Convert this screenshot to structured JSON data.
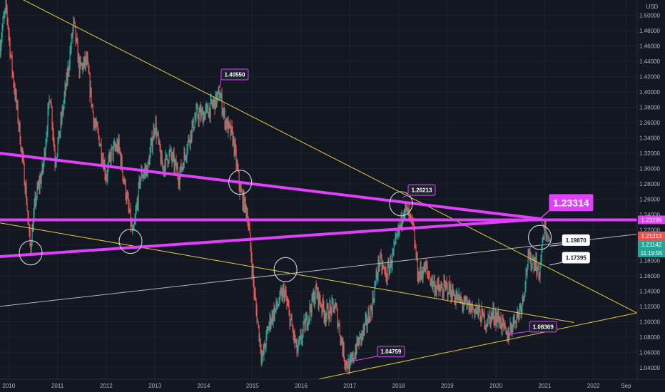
{
  "chart_data": {
    "type": "line",
    "currency_label": "USD",
    "x_axis": {
      "range_years": [
        2009.82,
        2023.0
      ],
      "ticks": [
        {
          "label": "2010",
          "x": 2010
        },
        {
          "label": "2011",
          "x": 2011
        },
        {
          "label": "2012",
          "x": 2012
        },
        {
          "label": "2013",
          "x": 2013
        },
        {
          "label": "2014",
          "x": 2014
        },
        {
          "label": "2015",
          "x": 2015
        },
        {
          "label": "2016",
          "x": 2016
        },
        {
          "label": "2017",
          "x": 2017
        },
        {
          "label": "2018",
          "x": 2018
        },
        {
          "label": "2019",
          "x": 2019
        },
        {
          "label": "2020",
          "x": 2020
        },
        {
          "label": "2021",
          "x": 2021
        },
        {
          "label": "2022",
          "x": 2022
        },
        {
          "label": "Sep",
          "x": 2022.67
        }
      ]
    },
    "y_axis": {
      "range": [
        1.025,
        1.52
      ],
      "ticks": [
        "1.04000",
        "1.06000",
        "1.08000",
        "1.10000",
        "1.12000",
        "1.14000",
        "1.16000",
        "1.18000",
        "1.20000",
        "1.22000",
        "1.24000",
        "1.26000",
        "1.28000",
        "1.30000",
        "1.32000",
        "1.34000",
        "1.36000",
        "1.38000",
        "1.40000",
        "1.42000",
        "1.44000",
        "1.46000",
        "1.48000",
        "1.50000"
      ]
    },
    "price_series": {
      "name": "",
      "anchors": [
        [
          2009.82,
          1.46
        ],
        [
          2009.88,
          1.49
        ],
        [
          2009.95,
          1.51
        ],
        [
          2010.05,
          1.44
        ],
        [
          2010.2,
          1.36
        ],
        [
          2010.35,
          1.27
        ],
        [
          2010.44,
          1.195
        ],
        [
          2010.55,
          1.26
        ],
        [
          2010.7,
          1.3
        ],
        [
          2010.85,
          1.4
        ],
        [
          2010.95,
          1.31
        ],
        [
          2011.05,
          1.35
        ],
        [
          2011.2,
          1.42
        ],
        [
          2011.33,
          1.49
        ],
        [
          2011.45,
          1.43
        ],
        [
          2011.6,
          1.44
        ],
        [
          2011.75,
          1.36
        ],
        [
          2011.85,
          1.34
        ],
        [
          2012.0,
          1.29
        ],
        [
          2012.1,
          1.32
        ],
        [
          2012.25,
          1.33
        ],
        [
          2012.4,
          1.27
        ],
        [
          2012.55,
          1.21
        ],
        [
          2012.7,
          1.29
        ],
        [
          2012.85,
          1.3
        ],
        [
          2013.0,
          1.36
        ],
        [
          2013.15,
          1.3
        ],
        [
          2013.3,
          1.32
        ],
        [
          2013.5,
          1.29
        ],
        [
          2013.7,
          1.34
        ],
        [
          2013.85,
          1.37
        ],
        [
          2014.0,
          1.37
        ],
        [
          2014.15,
          1.38
        ],
        [
          2014.33,
          1.397
        ],
        [
          2014.45,
          1.36
        ],
        [
          2014.6,
          1.34
        ],
        [
          2014.75,
          1.27
        ],
        [
          2014.9,
          1.24
        ],
        [
          2015.05,
          1.13
        ],
        [
          2015.2,
          1.05
        ],
        [
          2015.35,
          1.1
        ],
        [
          2015.5,
          1.12
        ],
        [
          2015.65,
          1.14
        ],
        [
          2015.75,
          1.11
        ],
        [
          2015.92,
          1.06
        ],
        [
          2016.05,
          1.09
        ],
        [
          2016.3,
          1.14
        ],
        [
          2016.5,
          1.11
        ],
        [
          2016.7,
          1.12
        ],
        [
          2016.9,
          1.05
        ],
        [
          2017.0,
          1.04
        ],
        [
          2017.15,
          1.07
        ],
        [
          2017.3,
          1.09
        ],
        [
          2017.45,
          1.12
        ],
        [
          2017.6,
          1.18
        ],
        [
          2017.75,
          1.16
        ],
        [
          2017.9,
          1.19
        ],
        [
          2018.05,
          1.23
        ],
        [
          2018.1,
          1.25
        ],
        [
          2018.2,
          1.24
        ],
        [
          2018.3,
          1.22
        ],
        [
          2018.4,
          1.16
        ],
        [
          2018.55,
          1.17
        ],
        [
          2018.7,
          1.15
        ],
        [
          2018.85,
          1.14
        ],
        [
          2019.0,
          1.145
        ],
        [
          2019.2,
          1.13
        ],
        [
          2019.4,
          1.12
        ],
        [
          2019.6,
          1.115
        ],
        [
          2019.8,
          1.1
        ],
        [
          2019.95,
          1.11
        ],
        [
          2020.1,
          1.1
        ],
        [
          2020.22,
          1.08
        ],
        [
          2020.35,
          1.1
        ],
        [
          2020.45,
          1.11
        ],
        [
          2020.55,
          1.13
        ],
        [
          2020.65,
          1.18
        ],
        [
          2020.8,
          1.18
        ],
        [
          2020.88,
          1.16
        ],
        [
          2020.97,
          1.21
        ],
        [
          2021.0,
          1.22
        ],
        [
          2021.05,
          1.215
        ]
      ]
    },
    "price_labels": [
      {
        "text": "1.40550",
        "x": 2014.33,
        "y": 1.4055
      },
      {
        "text": "1.26213",
        "x": 2018.08,
        "y": 1.2621
      },
      {
        "text": "1.04759",
        "x": 2016.98,
        "y": 1.0476
      },
      {
        "text": "1.08369",
        "x": 2020.25,
        "y": 1.0837
      },
      {
        "text": "1.19870",
        "x": 2021.1,
        "y": 1.1987
      },
      {
        "text": "1.17395",
        "x": 2021.1,
        "y": 1.1739
      }
    ],
    "callout": {
      "text": "1.23314",
      "x": 2020.97,
      "y": 1.2331,
      "color": "#e040fb"
    },
    "axis_tags": [
      {
        "text": "1.23299",
        "y": 1.233,
        "bg": "#e040fb",
        "fg": "#ffffff"
      },
      {
        "text": "1.21213",
        "y": 1.2121,
        "bg": "#ef5350",
        "fg": "#ffffff"
      },
      {
        "text": "1.21142",
        "y": 1.2114,
        "bg": "#26a69a",
        "fg": "#ffffff"
      },
      {
        "text": "11:19:55",
        "y": 1.1995,
        "bg": "#26a69a",
        "fg": "#ffffff"
      }
    ],
    "trendlines": [
      {
        "color": "#e6cd3a",
        "width": 1,
        "from": [
          2010.15,
          1.525
        ],
        "to": [
          2023.0,
          1.108
        ]
      },
      {
        "color": "#e6cd3a",
        "width": 1,
        "from": [
          2009.82,
          1.229
        ],
        "to": [
          2021.6,
          1.099
        ]
      },
      {
        "color": "#e6cd3a",
        "width": 1,
        "from": [
          2016.35,
          1.025
        ],
        "to": [
          2023.0,
          1.113
        ]
      },
      {
        "color": "#b2b5be",
        "width": 1,
        "from": [
          2009.82,
          1.12
        ],
        "to": [
          2023.0,
          1.215
        ]
      },
      {
        "color": "#e040fb",
        "width": 4,
        "from": [
          2009.82,
          1.32
        ],
        "to": [
          2020.95,
          1.234
        ]
      },
      {
        "color": "#e040fb",
        "width": 4,
        "from": [
          2009.82,
          1.185
        ],
        "to": [
          2020.95,
          1.234
        ]
      },
      {
        "color": "#e040fb",
        "width": 4,
        "from": [
          2009.82,
          1.233
        ],
        "to": [
          2023.0,
          1.233
        ]
      }
    ],
    "highlight_circles": [
      {
        "x": 2010.45,
        "y": 1.19
      },
      {
        "x": 2012.5,
        "y": 1.205
      },
      {
        "x": 2014.75,
        "y": 1.282
      },
      {
        "x": 2015.68,
        "y": 1.168
      },
      {
        "x": 2018.05,
        "y": 1.254
      },
      {
        "x": 2020.9,
        "y": 1.21
      }
    ]
  },
  "colors": {
    "background": "#131722",
    "grid": "#1e222d",
    "up": "#26a69a",
    "down": "#ef5350"
  }
}
